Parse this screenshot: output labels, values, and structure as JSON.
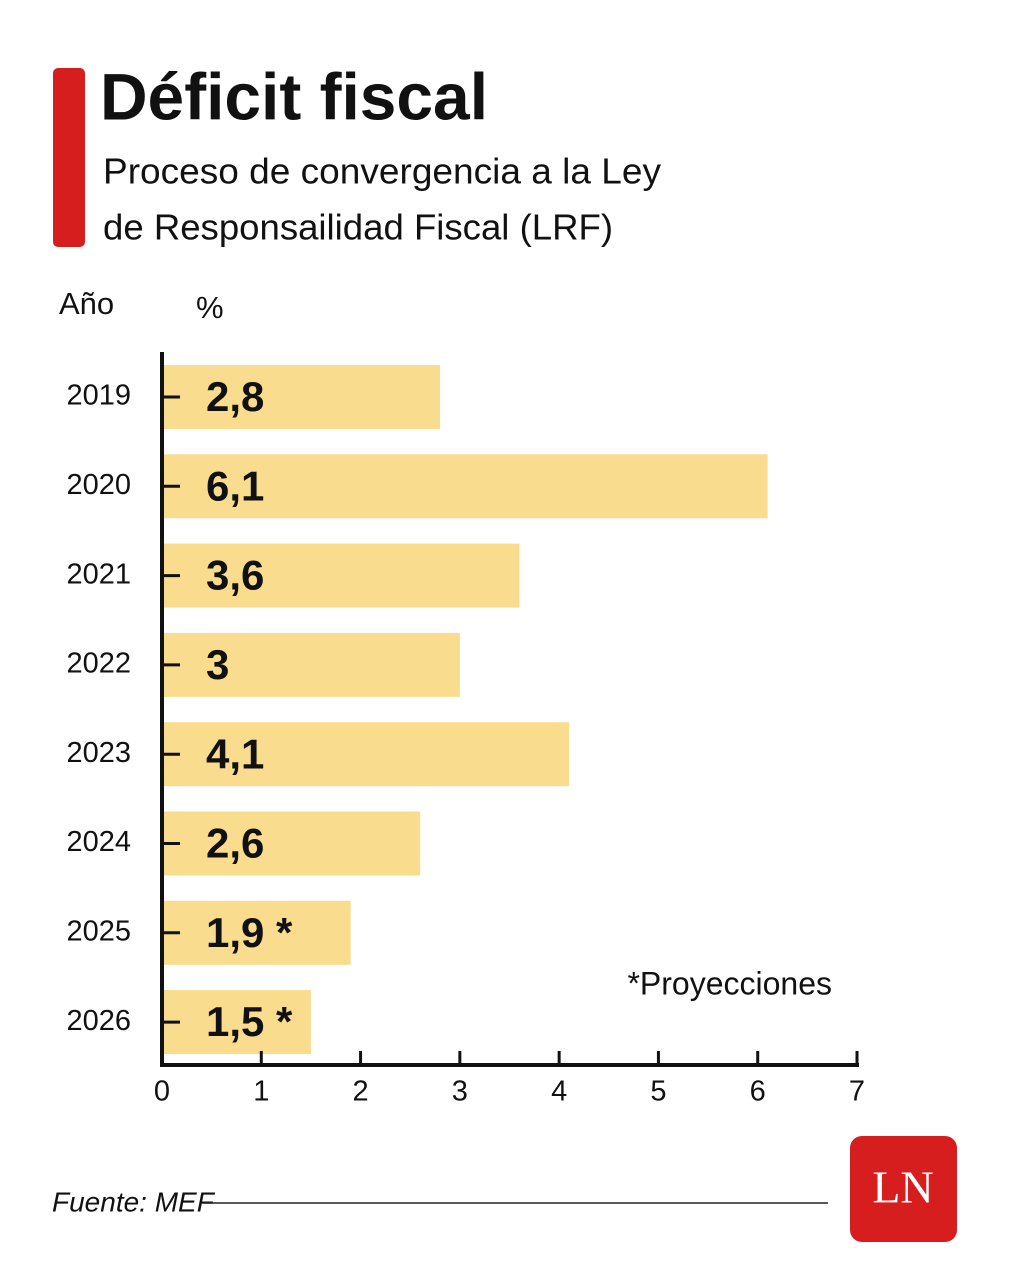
{
  "chart_data": {
    "type": "bar",
    "orientation": "horizontal",
    "title": "Déficit fiscal",
    "subtitle": [
      "Proceso de convergencia a la Ley",
      "de Responsailidad Fiscal (LRF)"
    ],
    "y_label": "Año",
    "x_label": "%",
    "categories": [
      "2019",
      "2020",
      "2021",
      "2022",
      "2023",
      "2024",
      "2025",
      "2026"
    ],
    "values": [
      2.8,
      6.1,
      3.6,
      3,
      4.1,
      2.6,
      1.9,
      1.5
    ],
    "value_labels": [
      "2,8",
      "6,1",
      "3,6",
      "3",
      "4,1",
      "2,6",
      "1,9 *",
      "1,5 *"
    ],
    "color": "#f9dc8d",
    "xlim": [
      0,
      7
    ],
    "xticks": [
      0,
      1,
      2,
      3,
      4,
      5,
      6,
      7
    ],
    "note": "*Proyecciones",
    "source": "Fuente: MEF",
    "logo": "LN"
  }
}
